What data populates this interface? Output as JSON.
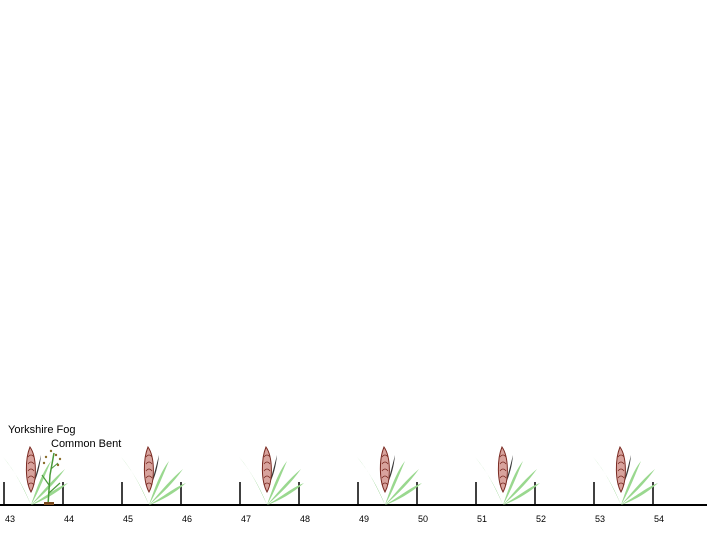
{
  "labels": {
    "species_1": "Yorkshire Fog",
    "species_2": "Common Bent"
  },
  "axis": {
    "ticks": [
      "43",
      "44",
      "45",
      "46",
      "47",
      "48",
      "49",
      "50",
      "51",
      "52",
      "53",
      "54"
    ]
  },
  "plants": [
    {
      "species": "Yorkshire Fog",
      "at_tick": "43"
    },
    {
      "species": "Common Bent",
      "at_tick": "43"
    },
    {
      "species": "Yorkshire Fog",
      "at_tick": "45"
    },
    {
      "species": "Yorkshire Fog",
      "at_tick": "47"
    },
    {
      "species": "Yorkshire Fog",
      "at_tick": "49"
    },
    {
      "species": "Yorkshire Fog",
      "at_tick": "51"
    },
    {
      "species": "Yorkshire Fog",
      "at_tick": "53"
    }
  ],
  "colors": {
    "leaf_dark": "#55b64a",
    "leaf_light": "#9ad88f",
    "flower_fill": "#d8a39d",
    "flower_stroke": "#7a2a22",
    "axis": "#000000"
  }
}
